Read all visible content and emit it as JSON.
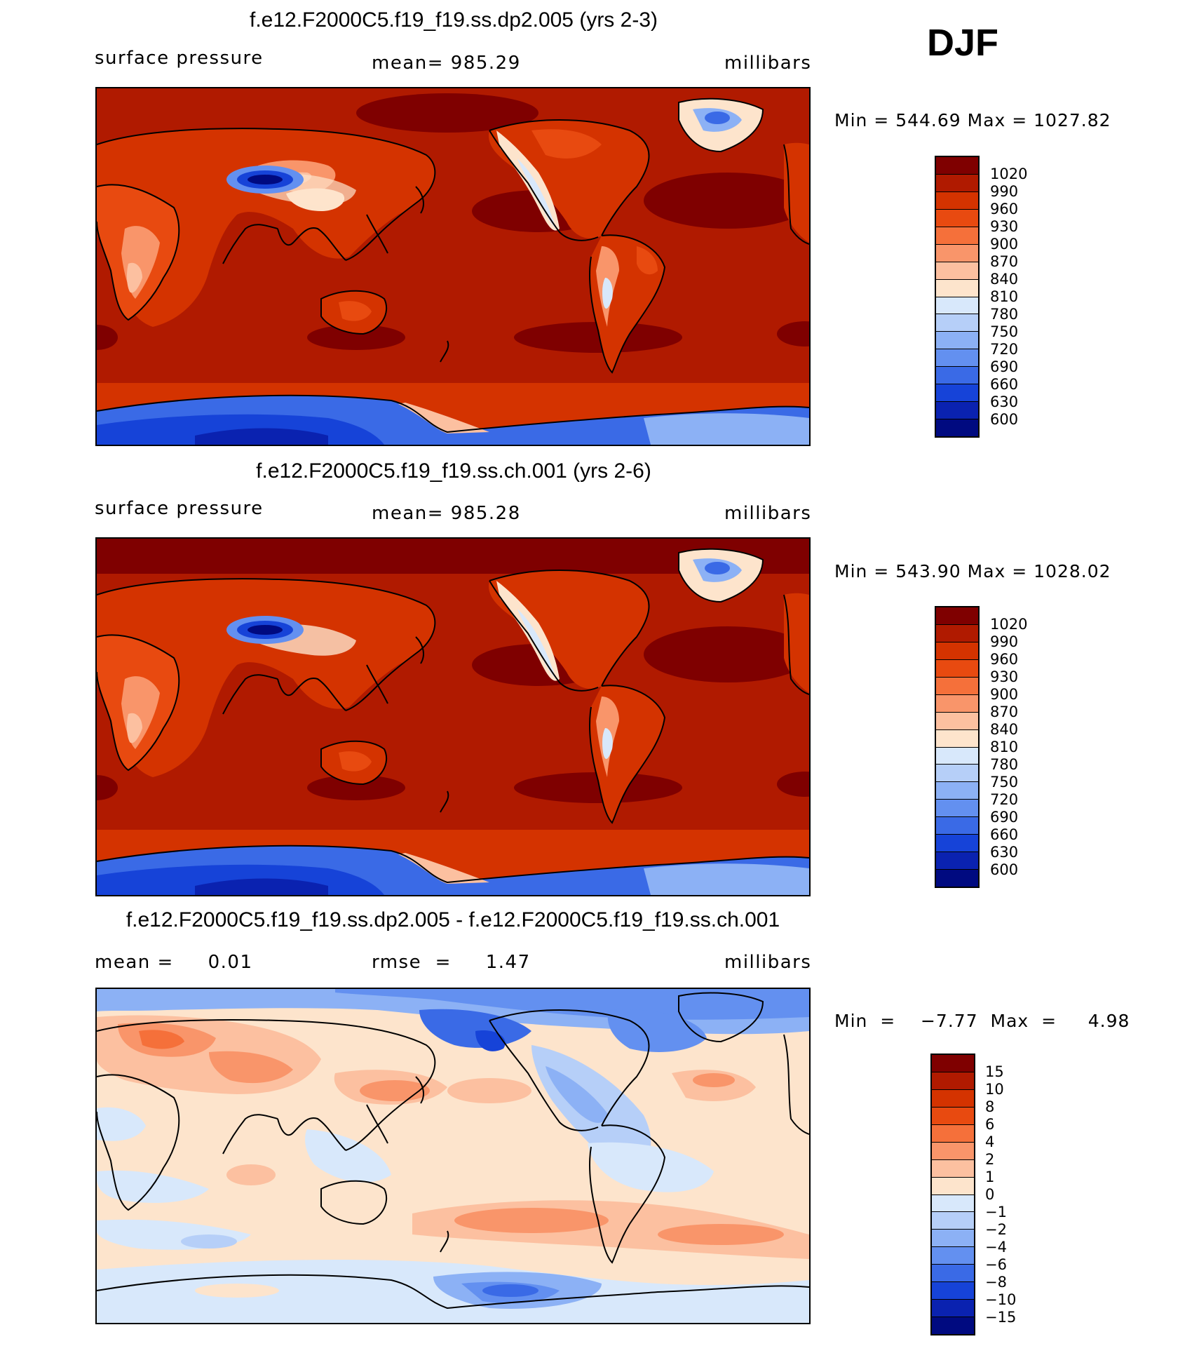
{
  "season": "DJF",
  "panels": [
    {
      "title": "f.e12.F2000C5.f19_f19.ss.dp2.005 (yrs 2-3)",
      "left_label": "surface pressure",
      "center_label": "mean=  985.29",
      "units": "millibars",
      "minmax": "Min  =  544.69  Max  =  1027.82",
      "colorbar": [
        "1020",
        "990",
        "960",
        "930",
        "900",
        "870",
        "840",
        "810",
        "780",
        "750",
        "720",
        "690",
        "660",
        "630",
        "600"
      ]
    },
    {
      "title": "f.e12.F2000C5.f19_f19.ss.ch.001 (yrs 2-6)",
      "left_label": "surface pressure",
      "center_label": "mean=  985.28",
      "units": "millibars",
      "minmax": "Min  =  543.90  Max  =  1028.02",
      "colorbar": [
        "1020",
        "990",
        "960",
        "930",
        "900",
        "870",
        "840",
        "810",
        "780",
        "750",
        "720",
        "690",
        "660",
        "630",
        "600"
      ]
    },
    {
      "title": "f.e12.F2000C5.f19_f19.ss.dp2.005 - f.e12.F2000C5.f19_f19.ss.ch.001",
      "left_label": "mean =     0.01",
      "center_label": "rmse  =     1.47",
      "units": "millibars",
      "minmax": "Min  =    −7.77  Max  =     4.98",
      "colorbar": [
        "15",
        "10",
        "8",
        "6",
        "4",
        "2",
        "1",
        "0",
        "−1",
        "−2",
        "−4",
        "−6",
        "−8",
        "−10",
        "−15"
      ]
    }
  ],
  "colors": {
    "pressure_scale": [
      "#7f0000",
      "#b01a00",
      "#d43300",
      "#e84a10",
      "#f5703a",
      "#f9956a",
      "#fcc0a0",
      "#fde4cc",
      "#d8e8fb",
      "#b6cff8",
      "#8cb1f5",
      "#6390f0",
      "#3a6ae6",
      "#1643d8",
      "#0a22b0",
      "#000a80"
    ],
    "diff_scale": [
      "#7f0000",
      "#b01a00",
      "#d43300",
      "#e84a10",
      "#f5703a",
      "#f9956a",
      "#fcc0a0",
      "#fde4cc",
      "#d8e8fb",
      "#b6cff8",
      "#8cb1f5",
      "#6390f0",
      "#3a6ae6",
      "#1643d8",
      "#0a22b0",
      "#000a80"
    ]
  }
}
